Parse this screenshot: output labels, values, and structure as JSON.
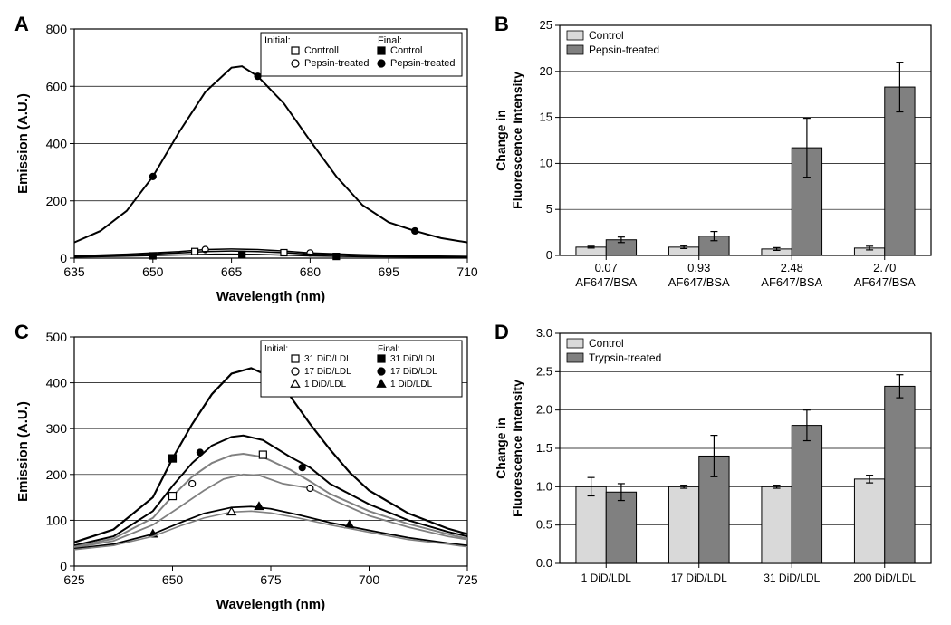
{
  "panel_A": {
    "label": "A",
    "type": "line",
    "x_axis": {
      "label": "Wavelength (nm)",
      "min": 635,
      "max": 710,
      "tick_step": 15,
      "fontsize": 14,
      "label_fontsize": 15
    },
    "y_axis": {
      "label": "Emission (A.U.)",
      "min": 0,
      "max": 800,
      "tick_step": 200,
      "fontsize": 14,
      "label_fontsize": 15
    },
    "background_color": "#ffffff",
    "grid_color": "#000000",
    "grid_width": 0.7,
    "legend": {
      "position": "top-right",
      "groups": [
        "Initial:",
        "Final:"
      ],
      "entries": [
        {
          "group": "Initial:",
          "marker": "square",
          "fill": "#ffffff",
          "stroke": "#000000",
          "label": "Controll"
        },
        {
          "group": "Initial:",
          "marker": "circle",
          "fill": "#ffffff",
          "stroke": "#000000",
          "label": "Pepsin-treated"
        },
        {
          "group": "Final:",
          "marker": "square",
          "fill": "#000000",
          "stroke": "#000000",
          "label": "Control"
        },
        {
          "group": "Final:",
          "marker": "circle",
          "fill": "#000000",
          "stroke": "#000000",
          "label": "Pepsin-treated"
        }
      ],
      "fontsize": 11
    },
    "series": [
      {
        "name": "Final Pepsin-treated",
        "color": "#000000",
        "line_width": 2,
        "marker": "circle",
        "marker_fill": "#000000",
        "marker_size": 7,
        "points": [
          [
            635,
            55
          ],
          [
            640,
            95
          ],
          [
            645,
            165
          ],
          [
            650,
            285
          ],
          [
            655,
            440
          ],
          [
            660,
            580
          ],
          [
            665,
            665
          ],
          [
            667,
            670
          ],
          [
            670,
            635
          ],
          [
            675,
            540
          ],
          [
            680,
            410
          ],
          [
            685,
            285
          ],
          [
            690,
            185
          ],
          [
            695,
            125
          ],
          [
            700,
            95
          ],
          [
            705,
            70
          ],
          [
            710,
            55
          ]
        ],
        "marker_points": [
          [
            650,
            285
          ],
          [
            670,
            635
          ],
          [
            700,
            95
          ]
        ]
      },
      {
        "name": "Initial Pepsin-treated",
        "color": "#000000",
        "line_width": 1.5,
        "marker": "circle",
        "marker_fill": "#ffffff",
        "marker_stroke": "#000000",
        "marker_size": 7,
        "points": [
          [
            635,
            8
          ],
          [
            645,
            14
          ],
          [
            655,
            23
          ],
          [
            660,
            30
          ],
          [
            665,
            32
          ],
          [
            670,
            30
          ],
          [
            675,
            25
          ],
          [
            680,
            18
          ],
          [
            690,
            12
          ],
          [
            700,
            8
          ],
          [
            710,
            6
          ]
        ],
        "marker_points": [
          [
            660,
            30
          ],
          [
            680,
            18
          ]
        ]
      },
      {
        "name": "Initial Control",
        "color": "#000000",
        "line_width": 1.5,
        "marker": "square",
        "marker_fill": "#ffffff",
        "marker_stroke": "#000000",
        "marker_size": 7,
        "points": [
          [
            635,
            6
          ],
          [
            645,
            10
          ],
          [
            655,
            18
          ],
          [
            660,
            23
          ],
          [
            665,
            25
          ],
          [
            670,
            23
          ],
          [
            675,
            19
          ],
          [
            680,
            14
          ],
          [
            690,
            9
          ],
          [
            700,
            6
          ],
          [
            710,
            5
          ]
        ],
        "marker_points": [
          [
            658,
            23
          ],
          [
            675,
            19
          ]
        ]
      },
      {
        "name": "Final Control",
        "color": "#000000",
        "line_width": 1.5,
        "marker": "square",
        "marker_fill": "#000000",
        "marker_size": 7,
        "points": [
          [
            635,
            4
          ],
          [
            645,
            7
          ],
          [
            655,
            11
          ],
          [
            662,
            14
          ],
          [
            670,
            13
          ],
          [
            680,
            8
          ],
          [
            690,
            5
          ],
          [
            700,
            4
          ],
          [
            710,
            3
          ]
        ],
        "marker_points": [
          [
            650,
            8
          ],
          [
            667,
            13
          ],
          [
            685,
            6
          ]
        ]
      }
    ]
  },
  "panel_B": {
    "label": "B",
    "type": "bar",
    "x_axis": {
      "categories": [
        "0.07",
        "0.93",
        "2.48",
        "2.70"
      ],
      "sub_label": "AF647/BSA",
      "fontsize": 13
    },
    "y_axis": {
      "label": "Change in\nFluorescence Intensity",
      "min": 0,
      "max": 25,
      "tick_step": 5,
      "fontsize": 13,
      "label_fontsize": 14
    },
    "background_color": "#ffffff",
    "grid_color": "#000000",
    "grid_width": 0.7,
    "legend": {
      "position": "top-left-inside",
      "entries": [
        {
          "swatch": "#d9d9d9",
          "label": "Control"
        },
        {
          "swatch": "#808080",
          "label": "Pepsin-treated"
        }
      ],
      "fontsize": 12
    },
    "series": [
      {
        "name": "Control",
        "color": "#d9d9d9",
        "stroke": "#000000",
        "values": [
          0.9,
          0.9,
          0.7,
          0.8
        ],
        "errors": [
          0.1,
          0.15,
          0.15,
          0.2
        ]
      },
      {
        "name": "Pepsin-treated",
        "color": "#808080",
        "stroke": "#000000",
        "values": [
          1.7,
          2.1,
          11.7,
          18.3
        ],
        "errors": [
          0.3,
          0.5,
          3.2,
          2.7
        ]
      }
    ],
    "bar_group_width": 0.65
  },
  "panel_C": {
    "label": "C",
    "type": "line",
    "x_axis": {
      "label": "Wavelength (nm)",
      "min": 625,
      "max": 725,
      "tick_step": 25,
      "fontsize": 14,
      "label_fontsize": 15
    },
    "y_axis": {
      "label": "Emission (A.U.)",
      "min": 0,
      "max": 500,
      "tick_step": 100,
      "fontsize": 14,
      "label_fontsize": 15
    },
    "background_color": "#ffffff",
    "grid_color": "#000000",
    "grid_width": 0.7,
    "legend": {
      "position": "top-right",
      "groups": [
        "Initial:",
        "Final:"
      ],
      "entries": [
        {
          "group": "Initial:",
          "marker": "square",
          "fill": "#ffffff",
          "stroke": "#000000",
          "label": "31 DiD/LDL"
        },
        {
          "group": "Initial:",
          "marker": "circle",
          "fill": "#ffffff",
          "stroke": "#000000",
          "label": "17 DiD/LDL"
        },
        {
          "group": "Initial:",
          "marker": "triangle",
          "fill": "#ffffff",
          "stroke": "#000000",
          "label": "1 DiD/LDL"
        },
        {
          "group": "Final:",
          "marker": "square",
          "fill": "#000000",
          "stroke": "#000000",
          "label": "31 DiD/LDL"
        },
        {
          "group": "Final:",
          "marker": "circle",
          "fill": "#000000",
          "stroke": "#000000",
          "label": "17 DiD/LDL"
        },
        {
          "group": "Final:",
          "marker": "triangle",
          "fill": "#000000",
          "stroke": "#000000",
          "label": "1 DiD/LDL"
        }
      ],
      "fontsize": 10
    },
    "series": [
      {
        "name": "Final 31",
        "color": "#000000",
        "line_width": 2.2,
        "marker": "square",
        "marker_fill": "#000000",
        "marker_size": 8,
        "points": [
          [
            625,
            52
          ],
          [
            635,
            80
          ],
          [
            645,
            150
          ],
          [
            650,
            235
          ],
          [
            655,
            310
          ],
          [
            660,
            375
          ],
          [
            665,
            420
          ],
          [
            670,
            432
          ],
          [
            675,
            413
          ],
          [
            680,
            370
          ],
          [
            685,
            310
          ],
          [
            690,
            255
          ],
          [
            695,
            205
          ],
          [
            700,
            165
          ],
          [
            710,
            115
          ],
          [
            720,
            82
          ],
          [
            725,
            70
          ]
        ],
        "marker_points": [
          [
            650,
            235
          ],
          [
            675,
            413
          ]
        ]
      },
      {
        "name": "Final 17",
        "color": "#000000",
        "line_width": 2,
        "marker": "circle",
        "marker_fill": "#000000",
        "marker_size": 7,
        "points": [
          [
            625,
            45
          ],
          [
            635,
            65
          ],
          [
            645,
            120
          ],
          [
            650,
            175
          ],
          [
            655,
            225
          ],
          [
            660,
            263
          ],
          [
            665,
            282
          ],
          [
            668,
            285
          ],
          [
            673,
            275
          ],
          [
            680,
            238
          ],
          [
            685,
            215
          ],
          [
            690,
            180
          ],
          [
            700,
            135
          ],
          [
            710,
            100
          ],
          [
            720,
            75
          ],
          [
            725,
            65
          ]
        ],
        "marker_points": [
          [
            657,
            248
          ],
          [
            683,
            215
          ]
        ]
      },
      {
        "name": "Initial 31",
        "color": "#808080",
        "line_width": 2,
        "marker": "square",
        "marker_fill": "#ffffff",
        "marker_stroke": "#000000",
        "marker_size": 8,
        "points": [
          [
            625,
            42
          ],
          [
            635,
            60
          ],
          [
            645,
            105
          ],
          [
            650,
            153
          ],
          [
            655,
            195
          ],
          [
            660,
            225
          ],
          [
            665,
            242
          ],
          [
            668,
            245
          ],
          [
            673,
            238
          ],
          [
            680,
            210
          ],
          [
            685,
            185
          ],
          [
            690,
            158
          ],
          [
            700,
            120
          ],
          [
            710,
            92
          ],
          [
            720,
            70
          ],
          [
            725,
            60
          ]
        ],
        "marker_points": [
          [
            650,
            153
          ],
          [
            673,
            243
          ]
        ]
      },
      {
        "name": "Initial 17",
        "color": "#808080",
        "line_width": 1.8,
        "marker": "circle",
        "marker_fill": "#ffffff",
        "marker_stroke": "#000000",
        "marker_size": 7,
        "points": [
          [
            625,
            40
          ],
          [
            635,
            55
          ],
          [
            645,
            90
          ],
          [
            652,
            130
          ],
          [
            658,
            165
          ],
          [
            663,
            190
          ],
          [
            668,
            200
          ],
          [
            672,
            198
          ],
          [
            678,
            180
          ],
          [
            685,
            170
          ],
          [
            692,
            140
          ],
          [
            700,
            110
          ],
          [
            710,
            85
          ],
          [
            720,
            65
          ],
          [
            725,
            58
          ]
        ],
        "marker_points": [
          [
            655,
            180
          ],
          [
            685,
            170
          ]
        ]
      },
      {
        "name": "Final 1",
        "color": "#000000",
        "line_width": 1.8,
        "marker": "triangle",
        "marker_fill": "#000000",
        "marker_size": 8,
        "points": [
          [
            625,
            38
          ],
          [
            635,
            48
          ],
          [
            645,
            70
          ],
          [
            652,
            95
          ],
          [
            658,
            115
          ],
          [
            665,
            128
          ],
          [
            670,
            130
          ],
          [
            675,
            125
          ],
          [
            682,
            112
          ],
          [
            690,
            95
          ],
          [
            700,
            78
          ],
          [
            710,
            62
          ],
          [
            720,
            50
          ],
          [
            725,
            45
          ]
        ],
        "marker_points": [
          [
            645,
            70
          ],
          [
            672,
            130
          ],
          [
            695,
            90
          ]
        ]
      },
      {
        "name": "Initial 1",
        "color": "#808080",
        "line_width": 1.6,
        "marker": "triangle",
        "marker_fill": "#ffffff",
        "marker_stroke": "#000000",
        "marker_size": 8,
        "points": [
          [
            625,
            36
          ],
          [
            635,
            45
          ],
          [
            645,
            65
          ],
          [
            652,
            88
          ],
          [
            658,
            105
          ],
          [
            665,
            118
          ],
          [
            670,
            120
          ],
          [
            675,
            116
          ],
          [
            682,
            105
          ],
          [
            690,
            90
          ],
          [
            700,
            74
          ],
          [
            710,
            58
          ],
          [
            720,
            48
          ],
          [
            725,
            42
          ]
        ],
        "marker_points": [
          [
            665,
            118
          ]
        ]
      }
    ]
  },
  "panel_D": {
    "label": "D",
    "type": "bar",
    "x_axis": {
      "categories": [
        "1 DiD/LDL",
        "17 DiD/LDL",
        "31 DiD/LDL",
        "200 DiD/LDL"
      ],
      "fontsize": 12
    },
    "y_axis": {
      "label": "Change in\nFluorescence Intensity",
      "min": 0,
      "max": 3.0,
      "tick_step": 0.5,
      "fontsize": 13,
      "label_fontsize": 14,
      "decimals": 1
    },
    "background_color": "#ffffff",
    "grid_color": "#000000",
    "grid_width": 0.7,
    "legend": {
      "position": "top-left-inside",
      "entries": [
        {
          "swatch": "#d9d9d9",
          "label": "Control"
        },
        {
          "swatch": "#808080",
          "label": "Trypsin-treated"
        }
      ],
      "fontsize": 12
    },
    "series": [
      {
        "name": "Control",
        "color": "#d9d9d9",
        "stroke": "#000000",
        "values": [
          1.0,
          1.0,
          1.0,
          1.1
        ],
        "errors": [
          0.12,
          0.02,
          0.02,
          0.05
        ]
      },
      {
        "name": "Trypsin-treated",
        "color": "#808080",
        "stroke": "#000000",
        "values": [
          0.93,
          1.4,
          1.8,
          2.31
        ],
        "errors": [
          0.11,
          0.27,
          0.2,
          0.15
        ]
      }
    ],
    "bar_group_width": 0.65
  }
}
